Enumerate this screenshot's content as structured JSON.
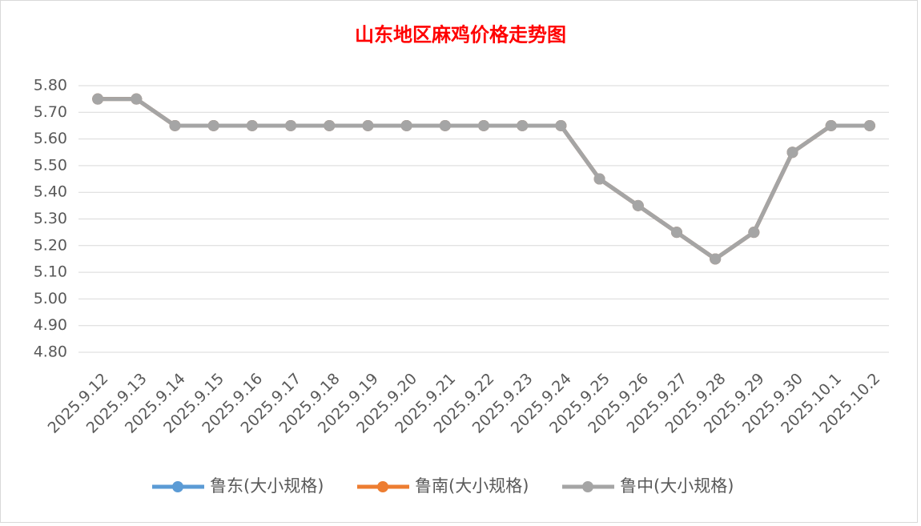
{
  "chart_data": {
    "type": "line",
    "title": "山东地区麻鸡价格走势图",
    "categories": [
      "2025.9.12",
      "2025.9.13",
      "2025.9.14",
      "2025.9.15",
      "2025.9.16",
      "2025.9.17",
      "2025.9.18",
      "2025.9.19",
      "2025.9.20",
      "2025.9.21",
      "2025.9.22",
      "2025.9.23",
      "2025.9.24",
      "2025.9.25",
      "2025.9.26",
      "2025.9.27",
      "2025.9.28",
      "2025.9.29",
      "2025.9.30",
      "2025.10.1",
      "2025.10.2"
    ],
    "series": [
      {
        "name": "鲁东(大小规格)",
        "color": "#5b9bd5",
        "values": [
          5.75,
          5.75,
          5.65,
          5.65,
          5.65,
          5.65,
          5.65,
          5.65,
          5.65,
          5.65,
          5.65,
          5.65,
          5.65,
          5.45,
          5.35,
          5.25,
          5.15,
          5.25,
          5.55,
          5.65,
          5.65
        ]
      },
      {
        "name": "鲁南(大小规格)",
        "color": "#ed7d31",
        "values": [
          5.75,
          5.75,
          5.65,
          5.65,
          5.65,
          5.65,
          5.65,
          5.65,
          5.65,
          5.65,
          5.65,
          5.65,
          5.65,
          5.45,
          5.35,
          5.25,
          5.15,
          5.25,
          5.55,
          5.65,
          5.65
        ]
      },
      {
        "name": "鲁中(大小规格)",
        "color": "#a5a5a5",
        "values": [
          5.75,
          5.75,
          5.65,
          5.65,
          5.65,
          5.65,
          5.65,
          5.65,
          5.65,
          5.65,
          5.65,
          5.65,
          5.65,
          5.45,
          5.35,
          5.25,
          5.15,
          5.25,
          5.55,
          5.65,
          5.65
        ]
      }
    ],
    "ylim": [
      4.8,
      5.8
    ],
    "yticks": [
      {
        "value": 4.8,
        "label": "4.80"
      },
      {
        "value": 4.9,
        "label": "4.90"
      },
      {
        "value": 5.0,
        "label": "5.00"
      },
      {
        "value": 5.1,
        "label": "5.10"
      },
      {
        "value": 5.2,
        "label": "5.20"
      },
      {
        "value": 5.3,
        "label": "5.30"
      },
      {
        "value": 5.4,
        "label": "5.40"
      },
      {
        "value": 5.5,
        "label": "5.50"
      },
      {
        "value": 5.6,
        "label": "5.60"
      },
      {
        "value": 5.7,
        "label": "5.70"
      },
      {
        "value": 5.8,
        "label": "5.80"
      }
    ],
    "grid": true
  }
}
